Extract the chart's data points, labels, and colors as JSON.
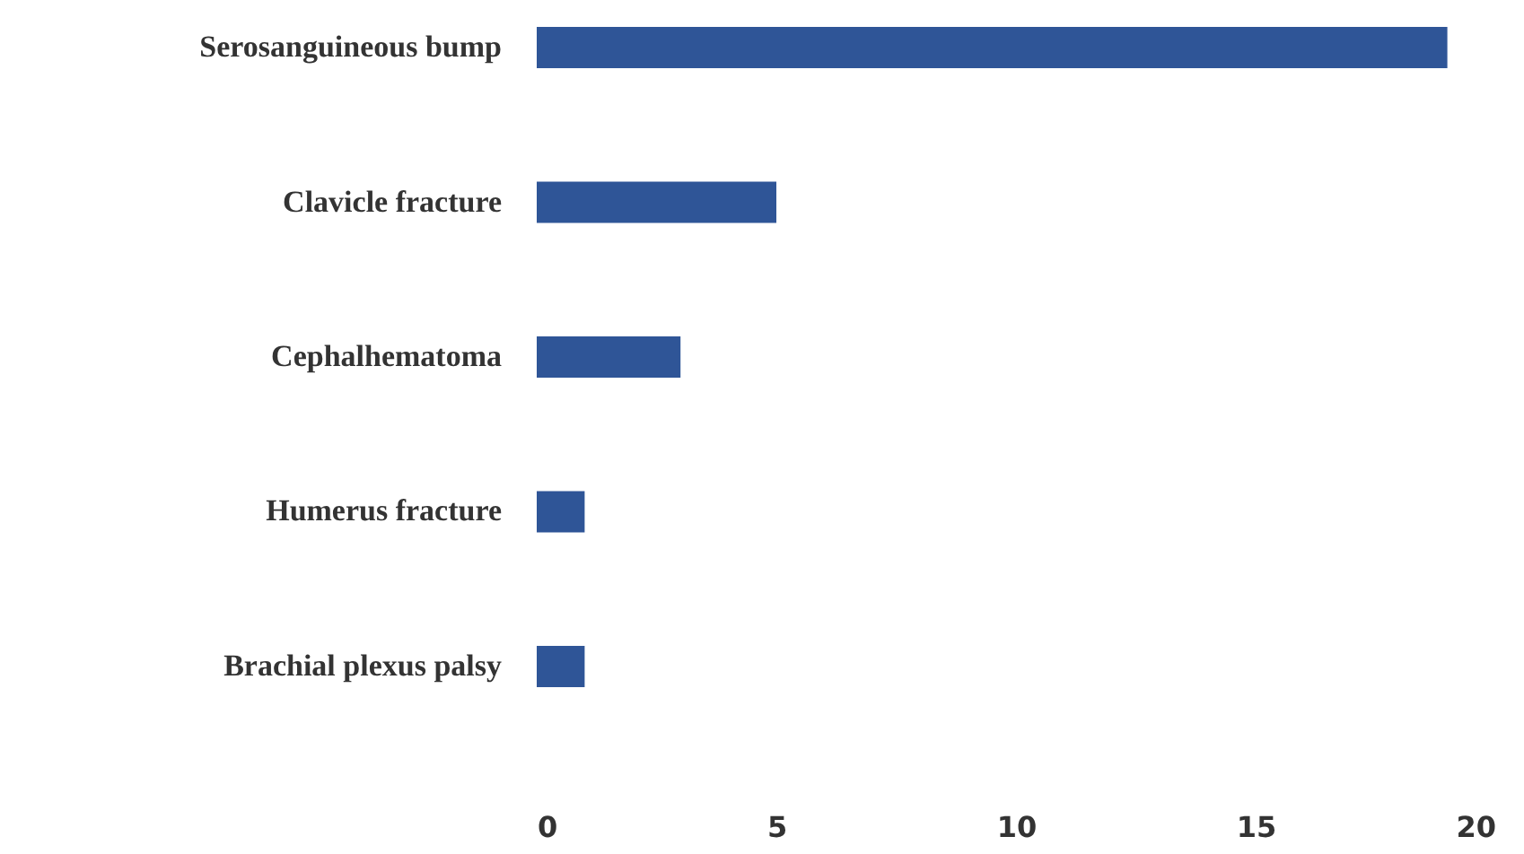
{
  "chart_data": {
    "type": "bar",
    "orientation": "horizontal",
    "categories": [
      "Serosanguineous bump",
      "Clavicle fracture",
      "Cephalhematoma",
      "Humerus fracture",
      "Brachial plexus palsy"
    ],
    "values": [
      19,
      5,
      3,
      1,
      1
    ],
    "color": "#2f5597",
    "xlim": [
      0,
      20
    ],
    "xticks": [
      0,
      5,
      10,
      15,
      20
    ],
    "grid": false
  }
}
